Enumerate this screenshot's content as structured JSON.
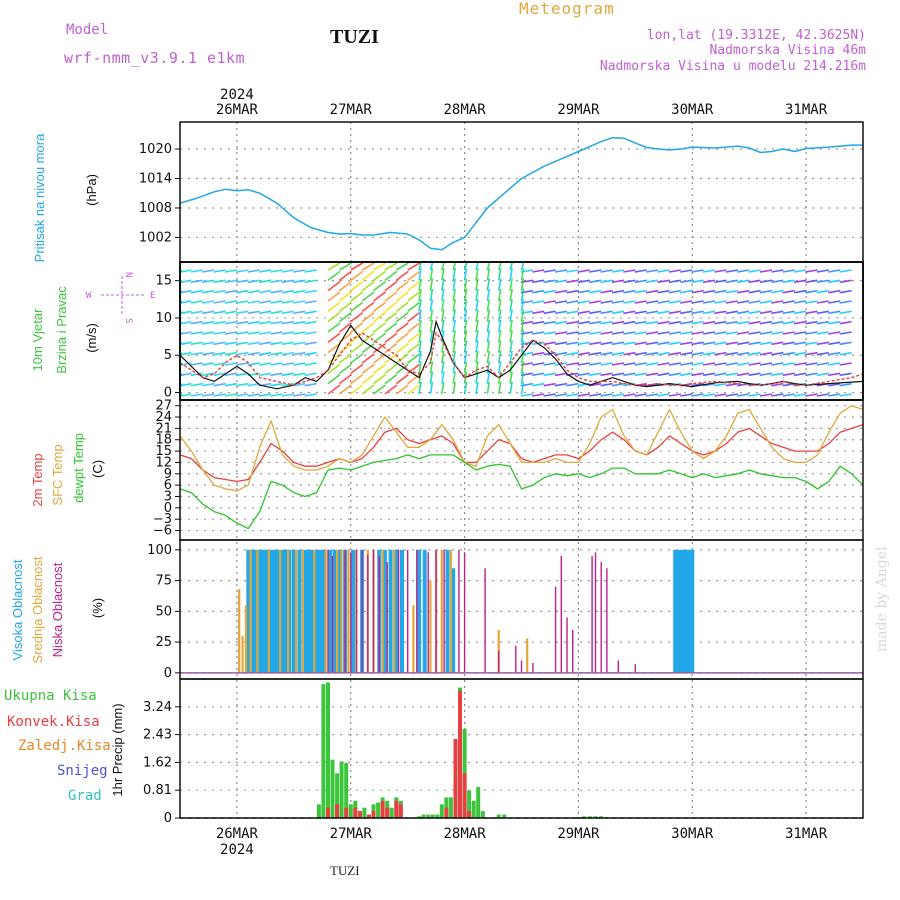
{
  "header": {
    "model_label": "Model",
    "model_name": "wrf-nmm_v3.9.1  e1km",
    "station": "TUZI",
    "product": "Meteogram",
    "lonlat": "lon,lat (19.3312E, 42.3625N)",
    "elevation": "Nadmorska Visina 46m",
    "model_elevation": "Nadmorska Visina u modelu 214.216m",
    "watermark": "made by Angel",
    "footer_station": "TUZI"
  },
  "colors": {
    "pressure": "#22a7e8",
    "temp2m": "#e84040",
    "sfc": "#e0a83a",
    "dewpt": "#2ec42e",
    "high_cloud": "#22a7e8",
    "mid_cloud": "#e0a83a",
    "low_cloud": "#c0208a",
    "total_precip": "#3cc43c",
    "conv_precip": "#e84040",
    "model": "#c060d0"
  },
  "chart_data": [
    {
      "type": "line",
      "name": "pressure",
      "ylabel": "Pritisak na nivou mora",
      "unit": "(hPa)",
      "yticks": [
        1002,
        1008,
        1014,
        1020
      ],
      "ylim": [
        997,
        1025.5
      ],
      "x_days": [
        "26MAR",
        "27MAR",
        "28MAR",
        "29MAR",
        "30MAR",
        "31MAR"
      ],
      "year": "2024",
      "x": [
        -0.5,
        -0.35,
        -0.2,
        -0.1,
        0.0,
        0.1,
        0.2,
        0.35,
        0.5,
        0.65,
        0.8,
        0.9,
        1.0,
        1.1,
        1.2,
        1.35,
        1.5,
        1.6,
        1.7,
        1.8,
        1.9,
        2.0,
        2.1,
        2.2,
        2.35,
        2.5,
        2.7,
        2.9,
        3.0,
        3.1,
        3.2,
        3.3,
        3.4,
        3.5,
        3.6,
        3.7,
        3.8,
        3.9,
        4.0,
        4.2,
        4.4,
        4.5,
        4.6,
        4.7,
        4.8,
        4.9,
        5.0,
        5.2,
        5.4,
        5.5
      ],
      "values": [
        1009,
        1010,
        1011.3,
        1011.8,
        1011.5,
        1011.7,
        1011,
        1009,
        1006,
        1004,
        1003,
        1002.7,
        1002.8,
        1002.5,
        1002.5,
        1003,
        1002.7,
        1001.5,
        999.8,
        999.5,
        1001,
        1002,
        1005,
        1008,
        1011,
        1014,
        1016.5,
        1018.5,
        1019.5,
        1020.5,
        1021.5,
        1022.3,
        1022.2,
        1021.2,
        1020.3,
        1020,
        1019.8,
        1020,
        1020.4,
        1020.2,
        1020.6,
        1020.2,
        1019.3,
        1019.5,
        1020,
        1019.5,
        1020.1,
        1020.4,
        1020.8,
        1020.8
      ]
    },
    {
      "type": "line",
      "name": "wind",
      "ylabel": "10m Vjetar",
      "ylabel2": "Brzina i Pravac",
      "unit": "(m/s)",
      "yticks": [
        0,
        5,
        10,
        15
      ],
      "ylim": [
        -1,
        17.5
      ],
      "compass": {
        "n": "N",
        "s": "S",
        "e": "E",
        "w": "W"
      },
      "x": [
        -0.5,
        -0.4,
        -0.3,
        -0.2,
        -0.1,
        0.0,
        0.1,
        0.2,
        0.35,
        0.5,
        0.6,
        0.7,
        0.8,
        0.9,
        1.0,
        1.1,
        1.2,
        1.3,
        1.4,
        1.5,
        1.6,
        1.7,
        1.75,
        1.8,
        1.9,
        2.0,
        2.1,
        2.2,
        2.3,
        2.4,
        2.5,
        2.6,
        2.7,
        2.8,
        2.9,
        3.0,
        3.1,
        3.2,
        3.3,
        3.4,
        3.5,
        3.6,
        3.7,
        3.8,
        3.9,
        4.0,
        4.2,
        4.4,
        4.5,
        4.6,
        4.7,
        4.8,
        4.9,
        5.0,
        5.2,
        5.4,
        5.5
      ],
      "speed_lines": [
        {
          "name": "black",
          "values": [
            5,
            3.5,
            2,
            1.5,
            2.5,
            3.5,
            2.5,
            1,
            0.5,
            1,
            2,
            1.5,
            3,
            6.5,
            9,
            7,
            6,
            5,
            4,
            3,
            2,
            5.5,
            9.5,
            7.5,
            4,
            2,
            2.5,
            3,
            2,
            3,
            5,
            7,
            6,
            4.5,
            2.5,
            1.5,
            1,
            1.5,
            2,
            1.5,
            1,
            0.8,
            1,
            1.2,
            1,
            0.8,
            1.3,
            1.5,
            1.2,
            1,
            1.2,
            1.5,
            1.2,
            1,
            1.2,
            1.4,
            1.5
          ]
        },
        {
          "name": "red",
          "values": [
            4,
            3,
            2,
            2.5,
            4,
            5,
            4,
            2,
            1.5,
            1,
            1.5,
            2,
            3,
            5,
            7,
            8,
            7,
            6,
            5,
            3,
            2.5,
            4,
            8,
            7,
            4,
            2,
            3,
            3.5,
            2,
            4,
            6,
            7,
            6.5,
            5,
            3,
            2,
            1.5,
            1.5,
            1.5,
            1.2,
            1,
            1,
            1.2,
            1,
            1,
            1.2,
            1.5,
            1.2,
            1,
            1,
            1.2,
            1.5,
            1,
            1,
            1.5,
            2,
            2.5
          ]
        }
      ]
    },
    {
      "type": "line",
      "name": "temperature",
      "ylabels": [
        "2m Temp",
        "SFC Temp",
        "dewpt Temp"
      ],
      "unit": "(C)",
      "yticks": [
        -6,
        -3,
        0,
        3,
        6,
        9,
        12,
        15,
        18,
        21,
        24,
        27
      ],
      "ylim": [
        -8.5,
        28.5
      ],
      "x": [
        -0.5,
        -0.4,
        -0.3,
        -0.2,
        -0.1,
        0.0,
        0.1,
        0.2,
        0.3,
        0.4,
        0.5,
        0.6,
        0.7,
        0.8,
        0.9,
        1.0,
        1.1,
        1.2,
        1.3,
        1.4,
        1.5,
        1.6,
        1.7,
        1.8,
        1.9,
        2.0,
        2.1,
        2.2,
        2.3,
        2.4,
        2.5,
        2.6,
        2.7,
        2.8,
        2.9,
        3.0,
        3.1,
        3.2,
        3.3,
        3.4,
        3.5,
        3.6,
        3.7,
        3.8,
        3.9,
        4.0,
        4.1,
        4.2,
        4.3,
        4.4,
        4.5,
        4.6,
        4.7,
        4.8,
        4.9,
        5.0,
        5.1,
        5.2,
        5.3,
        5.4,
        5.5
      ],
      "series": [
        {
          "name": "2m Temp",
          "color": "#e84040",
          "values": [
            14,
            13,
            10,
            8,
            7.5,
            7,
            7.5,
            12,
            17,
            15,
            12,
            11,
            11,
            12,
            13,
            12,
            13,
            16,
            20,
            21,
            18,
            17,
            18,
            19,
            17,
            12,
            12,
            15,
            18,
            17,
            13,
            12,
            13,
            14,
            14,
            13,
            15,
            18,
            20,
            18,
            15,
            14,
            16,
            19,
            17,
            15,
            14,
            15,
            17,
            20,
            21,
            19,
            17,
            16,
            15,
            15,
            15,
            17,
            20,
            21,
            22
          ]
        },
        {
          "name": "SFC Temp",
          "color": "#e0a83a",
          "values": [
            19,
            15,
            10,
            6,
            5,
            4.5,
            6,
            16,
            23,
            14,
            11,
            10,
            10,
            11,
            13,
            12,
            14,
            19,
            24,
            20,
            16,
            16,
            18,
            22,
            18,
            12,
            11,
            19,
            22,
            17,
            12,
            12,
            12,
            13,
            12,
            12,
            17,
            24,
            26,
            19,
            15,
            14,
            20,
            26,
            20,
            15,
            13,
            15,
            19,
            25,
            26,
            21,
            16,
            13,
            12,
            12,
            14,
            20,
            25,
            27,
            26
          ]
        },
        {
          "name": "dewpt Temp",
          "color": "#2ec42e",
          "values": [
            5,
            4,
            1,
            -1,
            -2,
            -4,
            -5.5,
            -1,
            7,
            6,
            4,
            3,
            4,
            10,
            10.5,
            10,
            11,
            12,
            12.5,
            13,
            14,
            13,
            14,
            14,
            14,
            12,
            10,
            11,
            11.5,
            11,
            5,
            6,
            8,
            9,
            8.5,
            9,
            8,
            9,
            10.5,
            10.5,
            9,
            9,
            9,
            10,
            9,
            8,
            9,
            8,
            8.5,
            9,
            10,
            9,
            8.5,
            8,
            8,
            7,
            5,
            7,
            11,
            9,
            6
          ]
        }
      ]
    },
    {
      "type": "bar",
      "name": "cloud",
      "ylabels": [
        "Visoka Oblacnost",
        "Srednja Oblacnost",
        "Niska Oblacnost"
      ],
      "unit": "(%)",
      "yticks": [
        0,
        25,
        50,
        75,
        100
      ],
      "ylim": [
        -5,
        108
      ],
      "series": [
        {
          "name": "Visoka Oblacnost",
          "color": "#22a7e8",
          "x": [
            0.1,
            0.13,
            0.16,
            0.2,
            0.23,
            0.26,
            0.3,
            0.33,
            0.36,
            0.4,
            0.43,
            0.46,
            0.5,
            0.55,
            0.6,
            0.63,
            0.66,
            0.7,
            0.73,
            0.76,
            0.82,
            0.86,
            0.9,
            0.95,
            1.02,
            1.1,
            1.25,
            1.3,
            1.35,
            1.4,
            1.45,
            1.6,
            1.65,
            1.85,
            1.9,
            3.85,
            3.88,
            3.91,
            3.94,
            3.97,
            4.0
          ],
          "values": [
            100,
            100,
            100,
            100,
            100,
            100,
            100,
            100,
            100,
            100,
            100,
            100,
            100,
            100,
            100,
            100,
            100,
            100,
            100,
            100,
            100,
            100,
            100,
            100,
            100,
            100,
            100,
            100,
            100,
            100,
            100,
            100,
            100,
            100,
            85,
            100,
            100,
            100,
            100,
            100,
            100
          ]
        },
        {
          "name": "Srednja Oblacnost",
          "color": "#e0a83a",
          "x": [
            0.02,
            0.05,
            0.08,
            0.12,
            0.18,
            0.28,
            0.38,
            0.45,
            0.52,
            0.58,
            0.68,
            0.78,
            0.88,
            0.92,
            0.98,
            1.05,
            1.15,
            1.2,
            1.28,
            1.38,
            1.55,
            1.7,
            1.75,
            1.8,
            1.88,
            2.3,
            2.55
          ],
          "values": [
            68,
            30,
            55,
            100,
            100,
            100,
            100,
            100,
            100,
            100,
            100,
            100,
            100,
            100,
            100,
            100,
            100,
            100,
            100,
            100,
            55,
            75,
            100,
            100,
            100,
            35,
            28
          ]
        },
        {
          "name": "Niska Oblacnost",
          "color": "#c0208a",
          "x": [
            0.8,
            0.84,
            0.95,
            1.0,
            1.05,
            1.1,
            1.15,
            1.2,
            1.25,
            1.32,
            1.42,
            1.5,
            1.58,
            1.68,
            1.75,
            1.82,
            1.95,
            2.0,
            2.18,
            2.3,
            2.45,
            2.5,
            2.6,
            2.8,
            2.85,
            2.9,
            2.95,
            3.12,
            3.15,
            3.2,
            3.25,
            3.35,
            3.5
          ],
          "values": [
            100,
            95,
            100,
            98,
            100,
            100,
            96,
            100,
            95,
            90,
            100,
            100,
            100,
            98,
            100,
            100,
            100,
            98,
            85,
            18,
            22,
            10,
            8,
            70,
            95,
            45,
            35,
            95,
            98,
            90,
            85,
            10,
            7
          ]
        }
      ]
    },
    {
      "type": "bar",
      "name": "precip",
      "legend": [
        "Ukupna Kisa",
        "Konvek.Kisa",
        "Zaledj.Kisa",
        "Snijeg",
        "Grad"
      ],
      "legend_colors": [
        "#3cc43c",
        "#e84040",
        "#e8862a",
        "#5050e0",
        "#30c0c0"
      ],
      "ylabel": "1hr Precip (mm)",
      "yticks": [
        0,
        0.81,
        1.62,
        2.43,
        3.24
      ],
      "ylim": [
        0,
        4.05
      ],
      "series": [
        {
          "name": "Ukupna Kisa",
          "x": [
            0.72,
            0.76,
            0.8,
            0.84,
            0.88,
            0.92,
            0.96,
            1.0,
            1.04,
            1.08,
            1.12,
            1.16,
            1.2,
            1.24,
            1.28,
            1.32,
            1.36,
            1.4,
            1.44,
            1.6,
            1.64,
            1.68,
            1.72,
            1.76,
            1.8,
            1.84,
            1.88,
            1.92,
            1.96,
            2.0,
            2.04,
            2.08,
            2.12,
            2.16,
            2.3,
            2.35,
            3.0,
            3.05,
            3.1,
            3.15,
            3.2
          ],
          "values": [
            0.4,
            3.9,
            3.95,
            1.7,
            1.3,
            1.65,
            1.6,
            0.4,
            0.5,
            0.2,
            0.3,
            0.1,
            0.4,
            0.45,
            0.6,
            0.5,
            0.3,
            0.6,
            0.5,
            0.05,
            0.1,
            0.1,
            0.1,
            0.1,
            0.4,
            0.6,
            0.6,
            2.3,
            3.8,
            2.6,
            0.8,
            0.5,
            0.9,
            0.2,
            0.1,
            0.1,
            0.03,
            0.05,
            0.05,
            0.05,
            0.05
          ]
        },
        {
          "name": "Konvek.Kisa",
          "x": [
            0.8,
            0.88,
            0.96,
            1.04,
            1.08,
            1.16,
            1.2,
            1.28,
            1.32,
            1.4,
            1.44,
            1.84,
            1.92,
            1.96,
            2.0,
            2.04
          ],
          "values": [
            0.3,
            0.4,
            0.3,
            0.3,
            0.2,
            0.1,
            0.2,
            0.5,
            0.3,
            0.5,
            0.4,
            0.3,
            2.3,
            3.7,
            1.3,
            0.2
          ]
        }
      ]
    }
  ]
}
